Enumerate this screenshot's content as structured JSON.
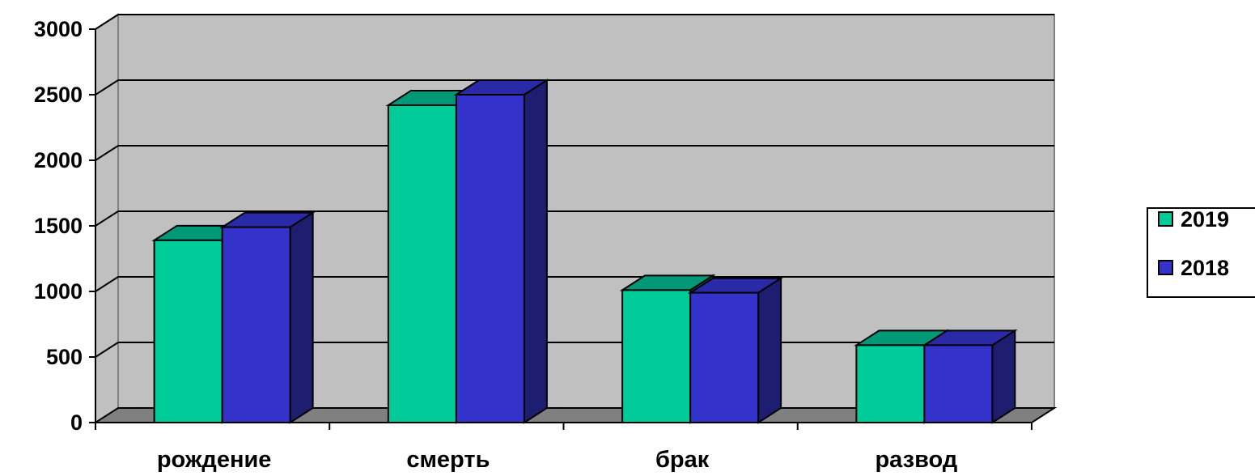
{
  "chart_data": {
    "type": "bar",
    "style": "3d-clustered-column",
    "categories": [
      "рождение",
      "смерть",
      "брак",
      "развод"
    ],
    "series": [
      {
        "name": "2019",
        "values": [
          1390,
          2420,
          1010,
          590
        ],
        "color": "#00CC99"
      },
      {
        "name": "2018",
        "values": [
          1490,
          2500,
          990,
          590
        ],
        "color": "#3333CC"
      }
    ],
    "ylim": [
      0,
      3000
    ],
    "yticks": [
      0,
      500,
      1000,
      1500,
      2000,
      2500,
      3000
    ],
    "grid": true,
    "legend": "right",
    "colors": {
      "wall": "#C0C0C0",
      "floor": "#808080",
      "series_2019_top": "#009977",
      "series_2018_top": "#2A2AA8",
      "series_2019_side": "#007A5E",
      "series_2018_side": "#1E1E70"
    }
  }
}
